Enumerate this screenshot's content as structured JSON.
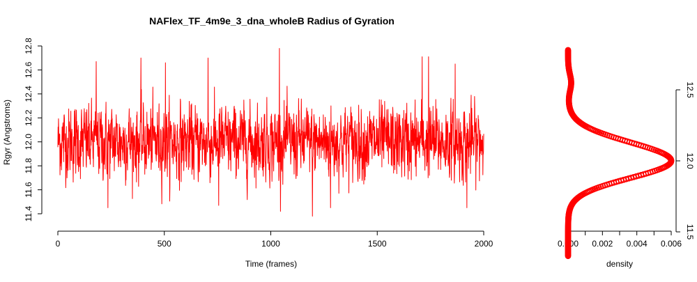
{
  "chart_data": [
    {
      "type": "line",
      "title": "NAFlex_TF_4m9e_3_dna_wholeB Radius of Gyration",
      "xlabel": "Time (frames)",
      "ylabel": "Rgyr (Angstroms)",
      "xlim": [
        0,
        2000
      ],
      "ylim": [
        11.4,
        12.8
      ],
      "x_ticks": [
        "0",
        "500",
        "1000",
        "1500",
        "2000"
      ],
      "y_ticks": [
        "11.4",
        "11.6",
        "11.8",
        "12.0",
        "12.2",
        "12.4",
        "12.6",
        "12.8"
      ],
      "grid": false,
      "series": [
        {
          "color": "#ff0000",
          "n_frames": 2000,
          "mean": 12.0,
          "sd": 0.15,
          "min": 11.38,
          "max": 12.78,
          "peaks": [
            {
              "frame": 180,
              "value": 12.67
            },
            {
              "frame": 235,
              "value": 11.45
            },
            {
              "frame": 390,
              "value": 12.7
            },
            {
              "frame": 505,
              "value": 12.66
            },
            {
              "frame": 705,
              "value": 12.7
            },
            {
              "frame": 755,
              "value": 11.47
            },
            {
              "frame": 1040,
              "value": 12.78
            },
            {
              "frame": 1195,
              "value": 11.38
            },
            {
              "frame": 1280,
              "value": 11.45
            },
            {
              "frame": 1710,
              "value": 12.71
            },
            {
              "frame": 1740,
              "value": 12.71
            },
            {
              "frame": 1865,
              "value": 12.65
            },
            {
              "frame": 1920,
              "value": 11.45
            }
          ]
        }
      ]
    },
    {
      "type": "line",
      "title": "",
      "xlabel": "density",
      "ylabel": "",
      "xlim": [
        0,
        0.006
      ],
      "ylim": [
        11.3,
        12.8
      ],
      "x_ticks": [
        "0.000",
        "0.002",
        "0.004",
        "0.006"
      ],
      "y_ticks": [
        "11.5",
        "12.0",
        "12.5"
      ],
      "y_axis_side": "right",
      "grid": false,
      "series": [
        {
          "color": "#ff0000",
          "peak_x": 0.006,
          "peak_y": 12.0,
          "y_range": [
            11.33,
            12.78
          ]
        }
      ]
    }
  ]
}
